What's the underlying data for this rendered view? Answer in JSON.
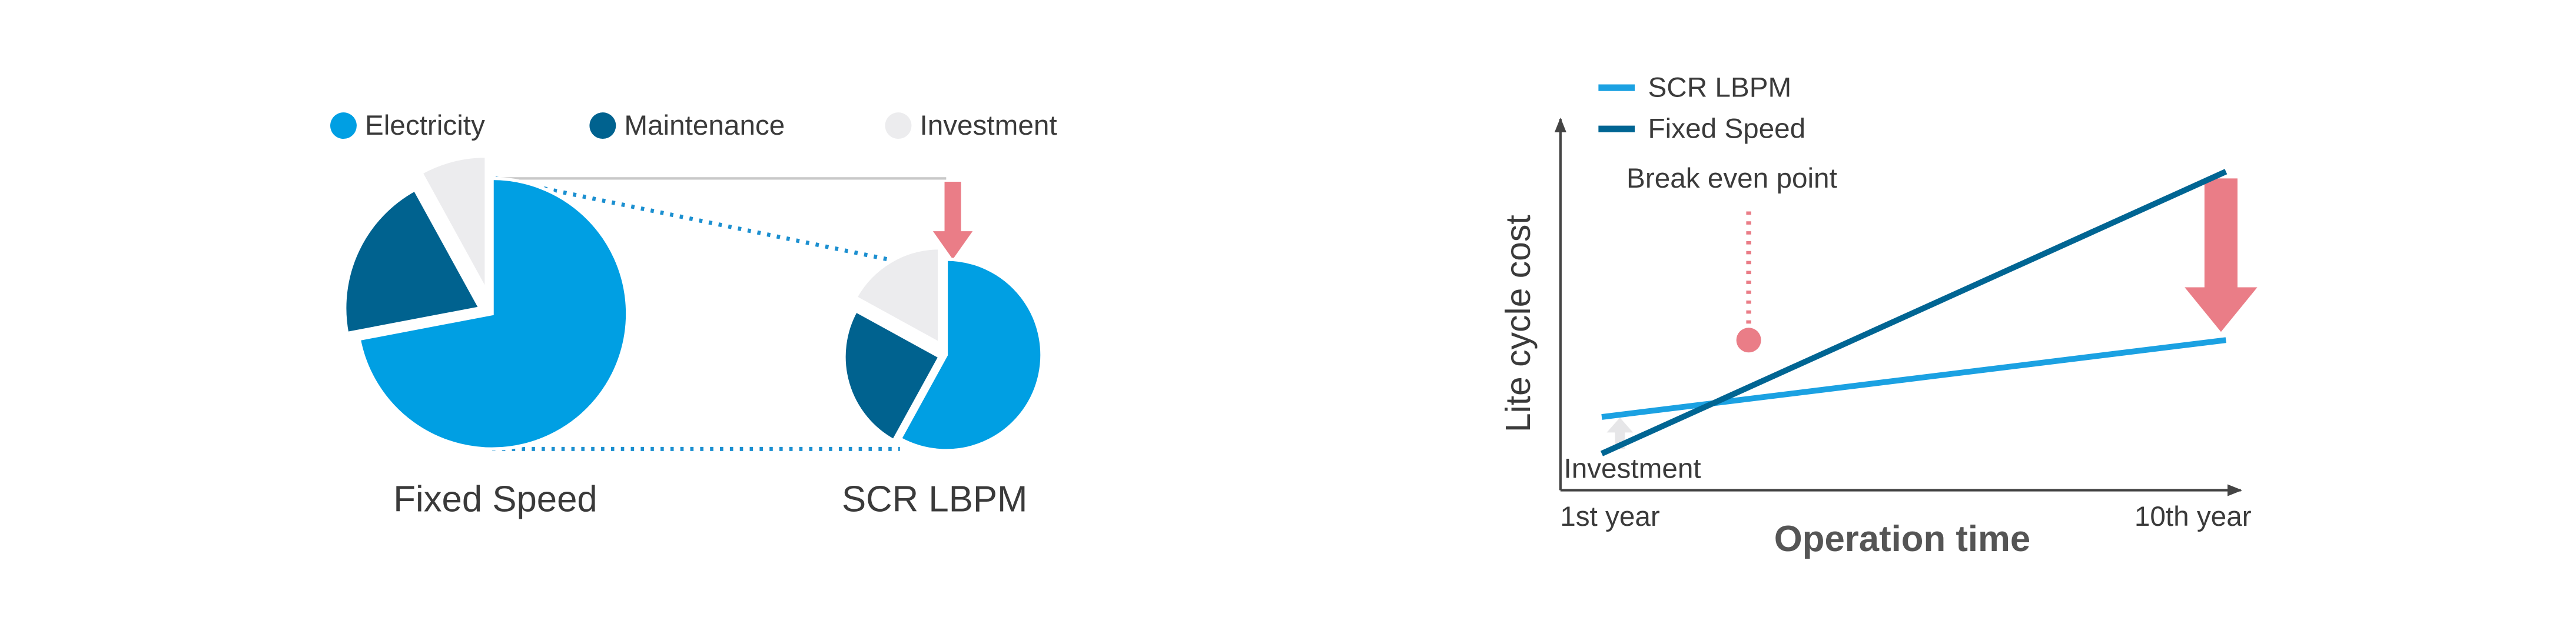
{
  "chart_data": [
    {
      "type": "pie",
      "title": "Fixed Speed",
      "categories": [
        "Electricity",
        "Maintenance",
        "Investment"
      ],
      "colors": [
        "#009fe3",
        "#00628f",
        "#ececee"
      ],
      "values": [
        72,
        20,
        8
      ]
    },
    {
      "type": "pie",
      "title": "SCR LBPM",
      "values": [
        58,
        25,
        17
      ]
    },
    {
      "type": "line",
      "x": [
        "1st year",
        "10th year"
      ],
      "xlabel": "Operation time",
      "ylabel": "Lite cycle cost",
      "ylim": [
        0,
        100
      ],
      "series": [
        {
          "name": "SCR LBPM",
          "color": "#1ba1e2",
          "values": [
            20,
            41
          ]
        },
        {
          "name": "Fixed Speed",
          "color": "#006593",
          "values": [
            10,
            87
          ]
        }
      ],
      "annotations": [
        "Break even point",
        "Investment"
      ]
    }
  ]
}
